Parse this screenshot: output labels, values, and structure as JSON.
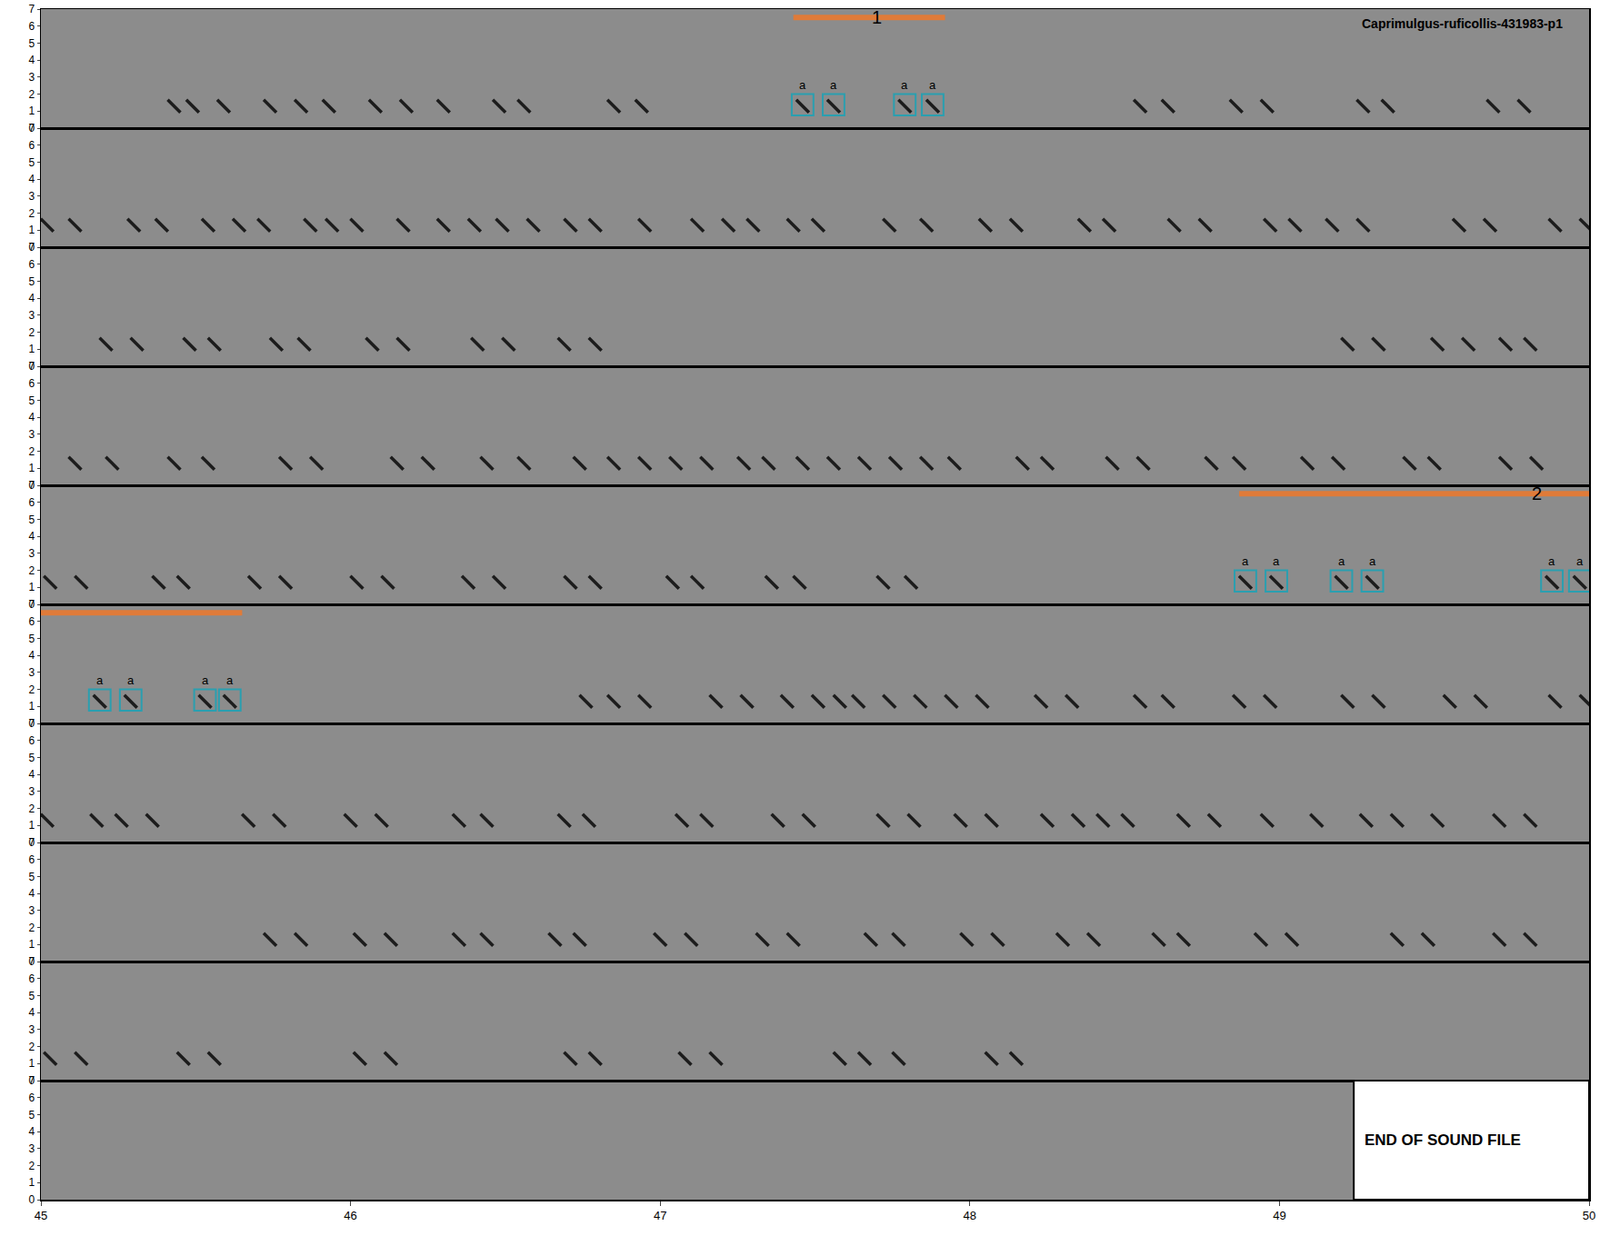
{
  "chart_data": {
    "type": "spectrogram",
    "title": "Caprimulgus-ruficollis-431983-p1",
    "ylim": [
      0,
      7
    ],
    "yticks": [
      0,
      1,
      2,
      3,
      4,
      5,
      6,
      7
    ],
    "call_khz": 1.3,
    "color": "#1c1c1c",
    "marker": "line-nw",
    "panels": [
      {
        "xlim": [
          0,
          5
        ],
        "xticks": [],
        "calls": [
          0.43,
          0.49,
          0.59,
          0.74,
          0.84,
          0.93,
          1.08,
          1.18,
          1.3,
          1.48,
          1.56,
          1.85,
          1.94,
          2.46,
          2.56,
          2.79,
          2.88,
          3.55,
          3.64,
          3.86,
          3.96,
          4.27,
          4.35,
          4.69,
          4.79
        ],
        "selections": [
          {
            "label": "a",
            "x": 2.46
          },
          {
            "label": "a",
            "x": 2.56
          },
          {
            "label": "a",
            "x": 2.79
          },
          {
            "label": "a",
            "x": 2.88
          }
        ],
        "bars": [
          {
            "label": "1",
            "x0": 2.43,
            "x1": 2.92
          }
        ]
      },
      {
        "xlim": [
          5,
          10
        ],
        "xticks": [],
        "calls": [
          5.02,
          5.11,
          5.3,
          5.39,
          5.54,
          5.64,
          5.72,
          5.87,
          5.94,
          6.02,
          6.17,
          6.3,
          6.4,
          6.49,
          6.59,
          6.71,
          6.79,
          6.95,
          7.12,
          7.22,
          7.3,
          7.43,
          7.51,
          7.74,
          7.86,
          8.05,
          8.15,
          8.37,
          8.45,
          8.66,
          8.76,
          8.97,
          9.05,
          9.17,
          9.27,
          9.58,
          9.68,
          9.89,
          9.99
        ],
        "selections": [],
        "bars": []
      },
      {
        "xlim": [
          10,
          15
        ],
        "xticks": [],
        "calls": [
          10.21,
          10.31,
          10.48,
          10.56,
          10.76,
          10.85,
          11.07,
          11.17,
          11.41,
          11.51,
          11.69,
          11.79,
          14.22,
          14.32,
          14.51,
          14.61,
          14.73,
          14.81
        ],
        "selections": [],
        "bars": []
      },
      {
        "xlim": [
          15,
          20
        ],
        "xticks": [],
        "calls": [
          15.11,
          15.23,
          15.43,
          15.54,
          15.79,
          15.89,
          16.15,
          16.25,
          16.44,
          16.56,
          16.74,
          16.85,
          16.95,
          17.05,
          17.15,
          17.27,
          17.35,
          17.46,
          17.56,
          17.66,
          17.76,
          17.86,
          17.95,
          18.17,
          18.25,
          18.46,
          18.56,
          18.78,
          18.87,
          19.09,
          19.19,
          19.42,
          19.5,
          19.73,
          19.83
        ],
        "selections": [],
        "bars": []
      },
      {
        "xlim": [
          20,
          25
        ],
        "xticks": [],
        "calls": [
          20.03,
          20.13,
          20.38,
          20.46,
          20.69,
          20.79,
          21.02,
          21.12,
          21.38,
          21.48,
          21.71,
          21.79,
          22.04,
          22.12,
          22.36,
          22.45,
          22.72,
          22.81,
          23.89,
          23.99,
          24.2,
          24.3,
          24.88,
          24.97
        ],
        "selections": [
          {
            "label": "a",
            "x": 23.89
          },
          {
            "label": "a",
            "x": 23.99
          },
          {
            "label": "a",
            "x": 24.2
          },
          {
            "label": "a",
            "x": 24.3
          },
          {
            "label": "a",
            "x": 24.88
          },
          {
            "label": "a",
            "x": 24.97
          }
        ],
        "bars": [
          {
            "label": "2",
            "x0": 23.87,
            "x1": 25
          }
        ]
      },
      {
        "xlim": [
          25,
          30
        ],
        "xticks": [],
        "calls": [
          25.19,
          25.29,
          25.53,
          25.61,
          26.76,
          26.85,
          26.95,
          27.18,
          27.28,
          27.41,
          27.51,
          27.58,
          27.64,
          27.74,
          27.84,
          27.94,
          28.04,
          28.23,
          28.33,
          28.55,
          28.64,
          28.87,
          28.97,
          29.22,
          29.32,
          29.55,
          29.65,
          29.89,
          29.99
        ],
        "selections": [
          {
            "label": "a",
            "x": 25.19
          },
          {
            "label": "a",
            "x": 25.29
          },
          {
            "label": "a",
            "x": 25.53
          },
          {
            "label": "a",
            "x": 25.61
          }
        ],
        "bars": [
          {
            "x0": 25,
            "x1": 25.65
          }
        ]
      },
      {
        "xlim": [
          30,
          35
        ],
        "xticks": [],
        "calls": [
          30.02,
          30.18,
          30.26,
          30.36,
          30.67,
          30.77,
          31.0,
          31.1,
          31.35,
          31.44,
          31.69,
          31.77,
          32.07,
          32.15,
          32.38,
          32.48,
          32.72,
          32.82,
          32.97,
          33.07,
          33.25,
          33.35,
          33.43,
          33.51,
          33.69,
          33.79,
          33.96,
          34.12,
          34.28,
          34.38,
          34.51,
          34.71,
          34.81
        ],
        "selections": [],
        "bars": []
      },
      {
        "xlim": [
          35,
          40
        ],
        "xticks": [],
        "calls": [
          35.74,
          35.84,
          36.03,
          36.13,
          36.35,
          36.44,
          36.66,
          36.74,
          37.0,
          37.1,
          37.33,
          37.43,
          37.68,
          37.77,
          37.99,
          38.09,
          38.3,
          38.4,
          38.61,
          38.69,
          38.94,
          39.04,
          39.38,
          39.48,
          39.71,
          39.81
        ],
        "selections": [],
        "bars": []
      },
      {
        "xlim": [
          40,
          45
        ],
        "xticks": [],
        "calls": [
          40.03,
          40.13,
          40.46,
          40.56,
          41.03,
          41.13,
          41.71,
          41.79,
          42.08,
          42.18,
          42.58,
          42.66,
          42.77,
          43.07,
          43.15
        ],
        "selections": [],
        "bars": []
      },
      {
        "xlim": [
          45,
          50
        ],
        "xticks": [
          45,
          46,
          47,
          48,
          49,
          50
        ],
        "calls": [],
        "selections": [],
        "bars": [],
        "end": {
          "text": "END OF SOUND FILE",
          "x": 49.24
        }
      }
    ],
    "selection_color": "#2a9fb0",
    "bar_color": "#e07b39"
  }
}
